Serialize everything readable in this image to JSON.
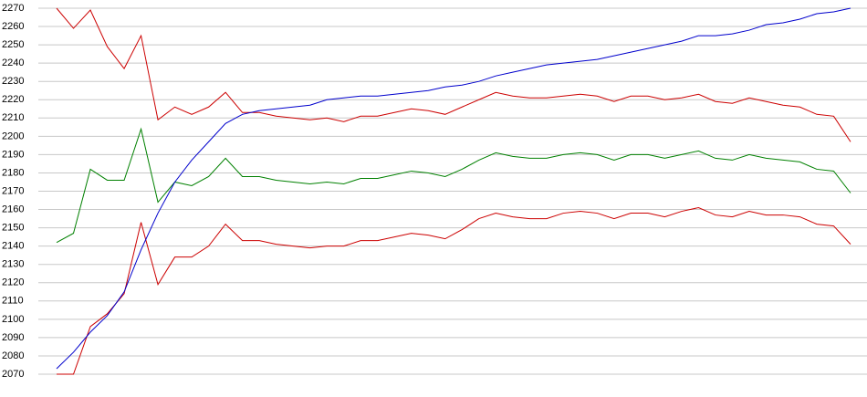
{
  "chart_data": {
    "type": "line",
    "categories": [
      null,
      null,
      null,
      null,
      null,
      null,
      null,
      null,
      null,
      null,
      null,
      null,
      null,
      null,
      null,
      null,
      null,
      null,
      null,
      null,
      null,
      null,
      null,
      null,
      null,
      null,
      null,
      null,
      null,
      null,
      null,
      null,
      null,
      null,
      null,
      null,
      null,
      null,
      null,
      null,
      null,
      null,
      null,
      null,
      null,
      null,
      null,
      null
    ],
    "series": [
      {
        "color": "#cc0000",
        "values": [
          2270,
          2259,
          2269,
          2249,
          2237,
          2255,
          2209,
          2216,
          2212,
          2216,
          2224,
          2213,
          2213,
          2211,
          2210,
          2209,
          2210,
          2208,
          2211,
          2211,
          2213,
          2215,
          2214,
          2212,
          2216,
          2220,
          2224,
          2222,
          2221,
          2221,
          2222,
          2223,
          2222,
          2219,
          2222,
          2222,
          2220,
          2221,
          2223,
          2219,
          2218,
          2221,
          2219,
          2217,
          2216,
          2212,
          2211,
          2197
        ]
      },
      {
        "color": "#008000",
        "values": [
          2142,
          2147,
          2182,
          2176,
          2176,
          2204,
          2164,
          2175,
          2173,
          2178,
          2188,
          2178,
          2178,
          2176,
          2175,
          2174,
          2175,
          2174,
          2177,
          2177,
          2179,
          2181,
          2180,
          2178,
          2182,
          2187,
          2191,
          2189,
          2188,
          2188,
          2190,
          2191,
          2190,
          2187,
          2190,
          2190,
          2188,
          2190,
          2192,
          2188,
          2187,
          2190,
          2188,
          2187,
          2186,
          2182,
          2181,
          2169
        ]
      },
      {
        "color": "#cc0000",
        "values": [
          2070,
          2070,
          2096,
          2103,
          2114,
          2153,
          2119,
          2134,
          2134,
          2140,
          2152,
          2143,
          2143,
          2141,
          2140,
          2139,
          2140,
          2140,
          2143,
          2143,
          2145,
          2147,
          2146,
          2144,
          2149,
          2155,
          2158,
          2156,
          2155,
          2155,
          2158,
          2159,
          2158,
          2155,
          2158,
          2158,
          2156,
          2159,
          2161,
          2157,
          2156,
          2159,
          2157,
          2157,
          2156,
          2152,
          2151,
          2141
        ]
      },
      {
        "color": "#0000cc",
        "values": [
          2073,
          2082,
          2093,
          2102,
          2115,
          2138,
          2158,
          2175,
          2187,
          2197,
          2207,
          2212,
          2214,
          2215,
          2216,
          2217,
          2220,
          2221,
          2222,
          2222,
          2223,
          2224,
          2225,
          2227,
          2228,
          2230,
          2233,
          2235,
          2237,
          2239,
          2240,
          2241,
          2242,
          2244,
          2246,
          2248,
          2250,
          2252,
          2255,
          2255,
          2256,
          2258,
          2261,
          2262,
          2264,
          2267,
          2268,
          2270
        ]
      }
    ],
    "ylim": [
      2070,
      2270
    ],
    "yticks": [
      2070,
      2080,
      2090,
      2100,
      2110,
      2120,
      2130,
      2140,
      2150,
      2160,
      2170,
      2180,
      2190,
      2200,
      2210,
      2220,
      2230,
      2240,
      2250,
      2260,
      2270
    ],
    "grid": true
  }
}
